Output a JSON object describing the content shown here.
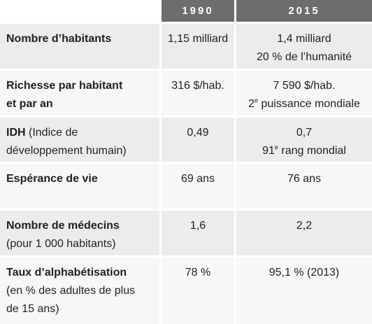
{
  "header": {
    "col_1990": "1990",
    "col_2015": "2015"
  },
  "rows": [
    {
      "label_bold": "Nombre d’habitants",
      "label_normal": "",
      "v1990": "1,15 milliard",
      "v2015_line1": "1,4 milliard",
      "v2015_line2": "20 % de l’humanité"
    },
    {
      "label_bold_1": "Richesse par habitant",
      "label_bold_2": "et par an",
      "v1990": "316 $/hab.",
      "v2015_line1": "7 590 $/hab.",
      "v2015_line2_num": "2",
      "v2015_line2_sup": "e",
      "v2015_line2_rest": " puissance mondiale"
    },
    {
      "label_bold": "IDH",
      "label_normal_1": " (Indice de",
      "label_normal_2": "développement humain)",
      "v1990": "0,49",
      "v2015_line1": "0,7",
      "v2015_line2_num": "91",
      "v2015_line2_sup": "e",
      "v2015_line2_rest": " rang mondial"
    },
    {
      "label_bold": "Espérance de vie",
      "v1990": "69 ans",
      "v2015_line1": "76 ans"
    },
    {
      "label_bold": "Nombre de médecins",
      "label_normal": "(pour 1 000 habitants)",
      "v1990": "1,6",
      "v2015_line1": "2,2"
    },
    {
      "label_bold": "Taux d’alphabétisation",
      "label_normal_1": "(en % des adultes de plus",
      "label_normal_2": "de 15 ans)",
      "v1990": "78 %",
      "v2015_line1": "95,1 % (2013)"
    }
  ]
}
